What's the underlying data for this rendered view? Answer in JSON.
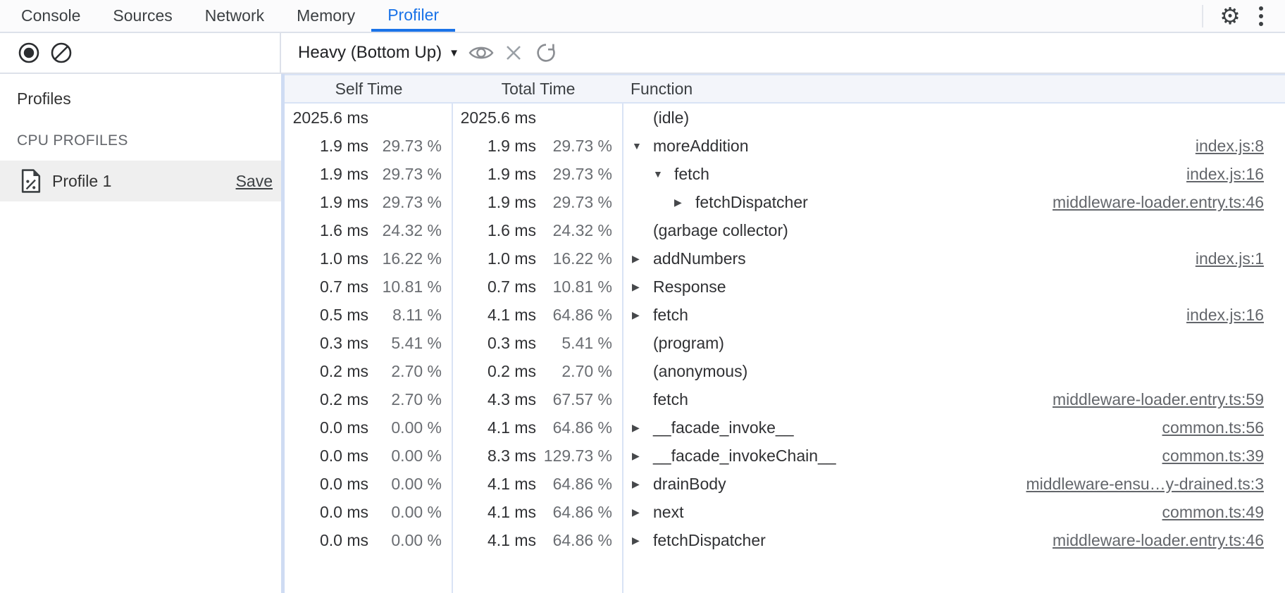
{
  "tabs": {
    "items": [
      "Console",
      "Sources",
      "Network",
      "Memory",
      "Profiler"
    ],
    "active": "Profiler"
  },
  "icons": {
    "gear": "⚙",
    "caret": "▼"
  },
  "toolbar": {
    "view_mode": "Heavy (Bottom Up)"
  },
  "sidebar": {
    "profiles_heading": "Profiles",
    "section_label": "CPU PROFILES",
    "profile": {
      "name": "Profile 1",
      "save_label": "Save"
    }
  },
  "table": {
    "columns": [
      "Self Time",
      "Total Time",
      "Function"
    ],
    "rows": [
      {
        "self_ms": "2025.6 ms",
        "self_pct": "",
        "total_ms": "2025.6 ms",
        "total_pct": "",
        "fn": "(idle)",
        "indent": 0,
        "arrow": "",
        "link": ""
      },
      {
        "self_ms": "1.9 ms",
        "self_pct": "29.73 %",
        "total_ms": "1.9 ms",
        "total_pct": "29.73 %",
        "fn": "moreAddition",
        "indent": 0,
        "arrow": "down",
        "link": "index.js:8"
      },
      {
        "self_ms": "1.9 ms",
        "self_pct": "29.73 %",
        "total_ms": "1.9 ms",
        "total_pct": "29.73 %",
        "fn": "fetch",
        "indent": 1,
        "arrow": "down",
        "link": "index.js:16"
      },
      {
        "self_ms": "1.9 ms",
        "self_pct": "29.73 %",
        "total_ms": "1.9 ms",
        "total_pct": "29.73 %",
        "fn": "fetchDispatcher",
        "indent": 2,
        "arrow": "right",
        "link": "middleware-loader.entry.ts:46"
      },
      {
        "self_ms": "1.6 ms",
        "self_pct": "24.32 %",
        "total_ms": "1.6 ms",
        "total_pct": "24.32 %",
        "fn": "(garbage collector)",
        "indent": 0,
        "arrow": "",
        "link": ""
      },
      {
        "self_ms": "1.0 ms",
        "self_pct": "16.22 %",
        "total_ms": "1.0 ms",
        "total_pct": "16.22 %",
        "fn": "addNumbers",
        "indent": 0,
        "arrow": "right",
        "link": "index.js:1"
      },
      {
        "self_ms": "0.7 ms",
        "self_pct": "10.81 %",
        "total_ms": "0.7 ms",
        "total_pct": "10.81 %",
        "fn": "Response",
        "indent": 0,
        "arrow": "right",
        "link": ""
      },
      {
        "self_ms": "0.5 ms",
        "self_pct": "8.11 %",
        "total_ms": "4.1 ms",
        "total_pct": "64.86 %",
        "fn": "fetch",
        "indent": 0,
        "arrow": "right",
        "link": "index.js:16"
      },
      {
        "self_ms": "0.3 ms",
        "self_pct": "5.41 %",
        "total_ms": "0.3 ms",
        "total_pct": "5.41 %",
        "fn": "(program)",
        "indent": 0,
        "arrow": "",
        "link": ""
      },
      {
        "self_ms": "0.2 ms",
        "self_pct": "2.70 %",
        "total_ms": "0.2 ms",
        "total_pct": "2.70 %",
        "fn": "(anonymous)",
        "indent": 0,
        "arrow": "",
        "link": ""
      },
      {
        "self_ms": "0.2 ms",
        "self_pct": "2.70 %",
        "total_ms": "4.3 ms",
        "total_pct": "67.57 %",
        "fn": "fetch",
        "indent": 0,
        "arrow": "",
        "link": "middleware-loader.entry.ts:59"
      },
      {
        "self_ms": "0.0 ms",
        "self_pct": "0.00 %",
        "total_ms": "4.1 ms",
        "total_pct": "64.86 %",
        "fn": "__facade_invoke__",
        "indent": 0,
        "arrow": "right",
        "link": "common.ts:56"
      },
      {
        "self_ms": "0.0 ms",
        "self_pct": "0.00 %",
        "total_ms": "8.3 ms",
        "total_pct": "129.73 %",
        "fn": "__facade_invokeChain__",
        "indent": 0,
        "arrow": "right",
        "link": "common.ts:39"
      },
      {
        "self_ms": "0.0 ms",
        "self_pct": "0.00 %",
        "total_ms": "4.1 ms",
        "total_pct": "64.86 %",
        "fn": "drainBody",
        "indent": 0,
        "arrow": "right",
        "link": "middleware-ensu…y-drained.ts:3"
      },
      {
        "self_ms": "0.0 ms",
        "self_pct": "0.00 %",
        "total_ms": "4.1 ms",
        "total_pct": "64.86 %",
        "fn": "next",
        "indent": 0,
        "arrow": "right",
        "link": "common.ts:49"
      },
      {
        "self_ms": "0.0 ms",
        "self_pct": "0.00 %",
        "total_ms": "4.1 ms",
        "total_pct": "64.86 %",
        "fn": "fetchDispatcher",
        "indent": 0,
        "arrow": "right",
        "link": "middleware-loader.entry.ts:46"
      }
    ]
  }
}
